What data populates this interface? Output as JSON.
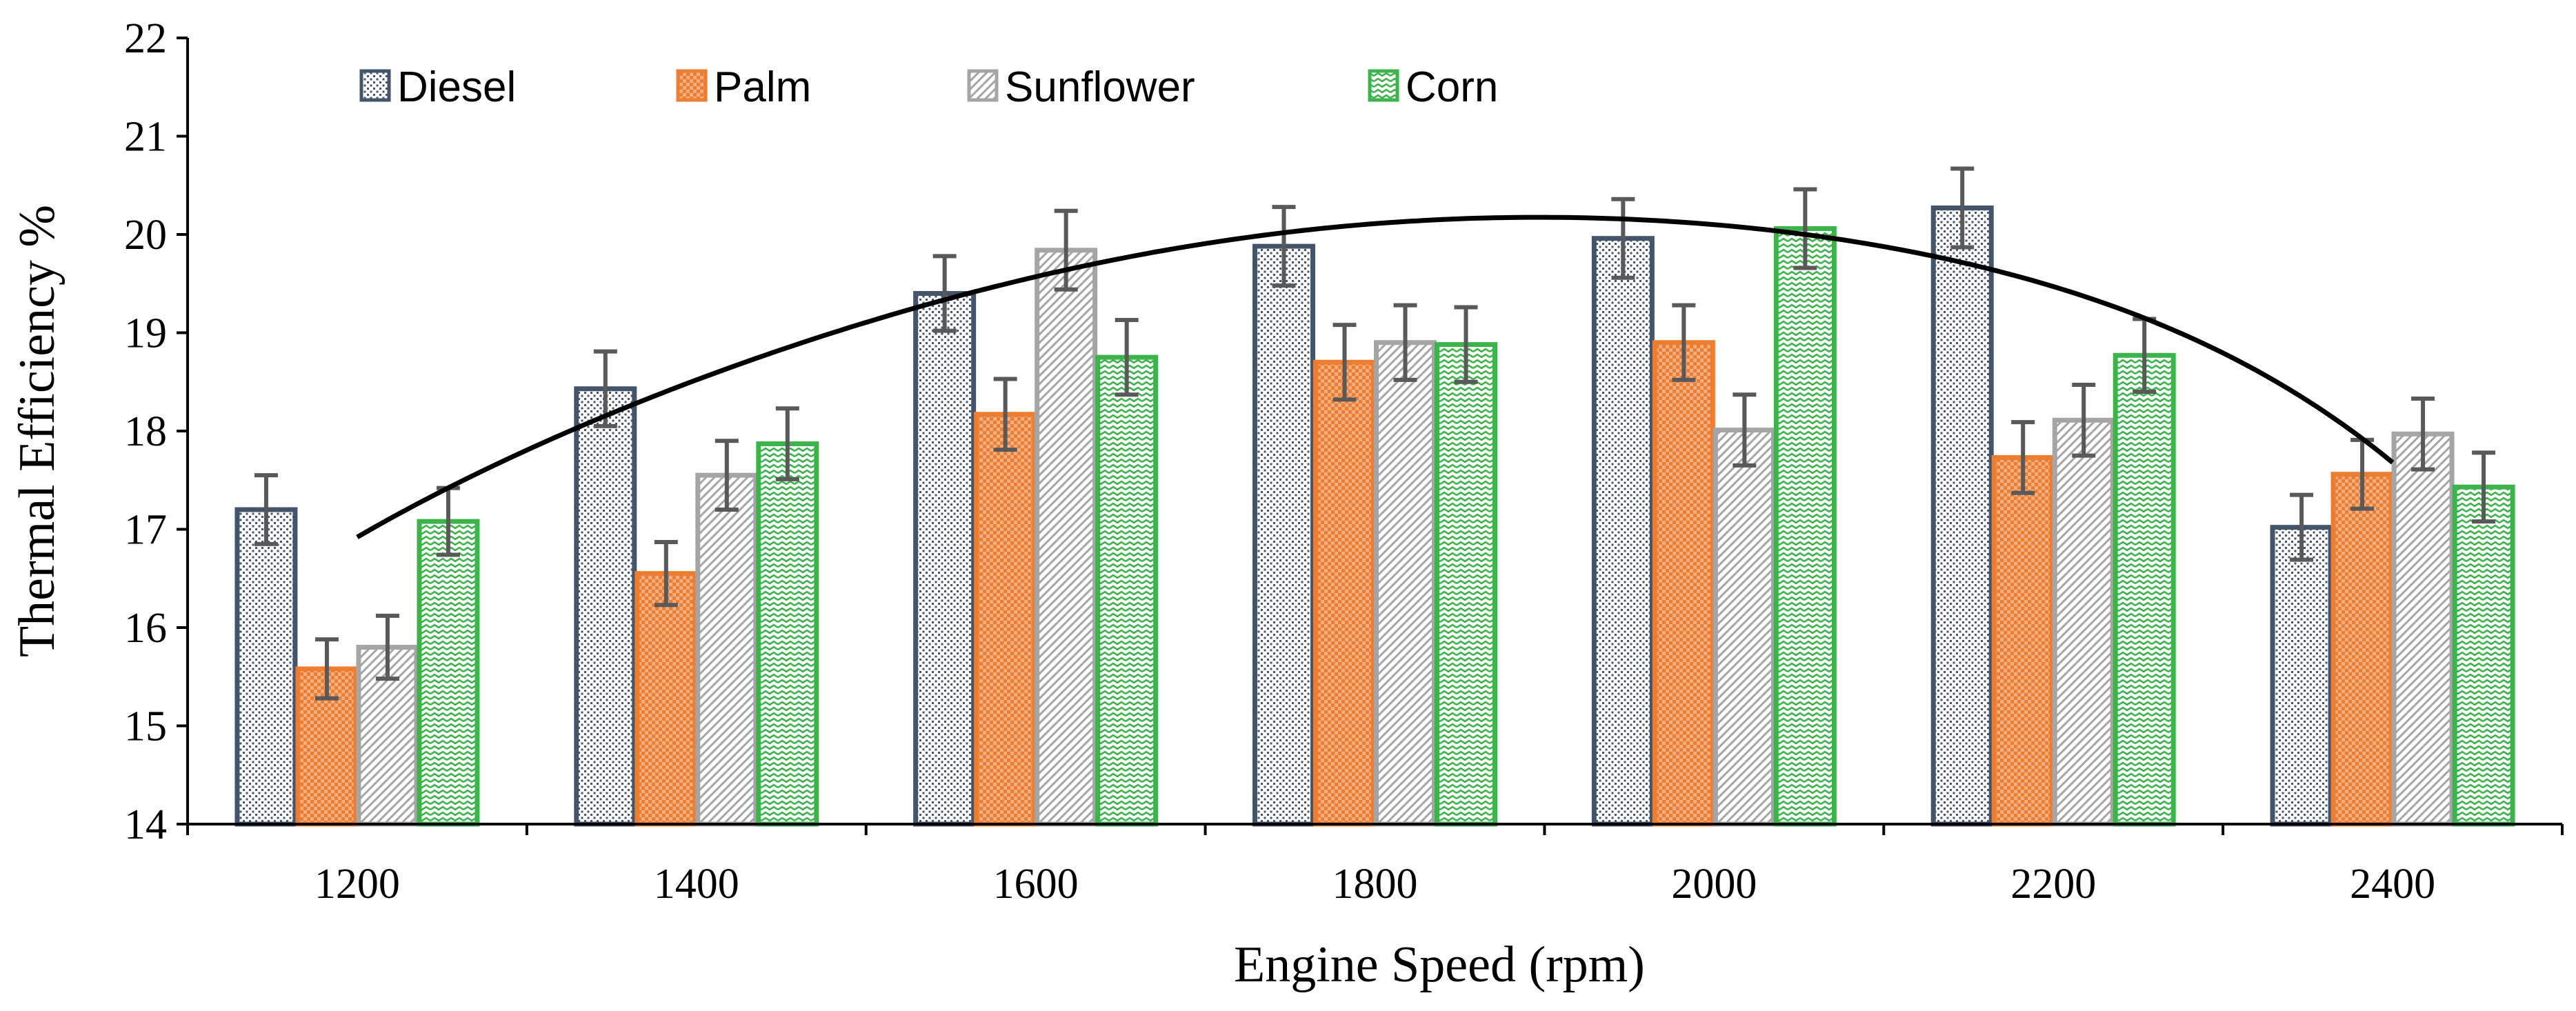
{
  "chart_data": {
    "type": "bar",
    "title": "",
    "xlabel": "Engine Speed (rpm)",
    "ylabel": "Thermal Efficiency %",
    "ylim": [
      14,
      22
    ],
    "yticks": [
      "14",
      "15",
      "16",
      "17",
      "18",
      "19",
      "20",
      "21",
      "22"
    ],
    "categories": [
      "1200",
      "1400",
      "1600",
      "1800",
      "2000",
      "2200",
      "2400"
    ],
    "legend_position": "top-left",
    "series": [
      {
        "name": "Diesel",
        "color": "#44546a",
        "pattern": "dots",
        "values": [
          17.2,
          18.43,
          19.4,
          19.88,
          19.96,
          20.27,
          17.02
        ],
        "errors": [
          0.35,
          0.38,
          0.38,
          0.4,
          0.4,
          0.4,
          0.33
        ]
      },
      {
        "name": "Palm",
        "color": "#ed7d31",
        "pattern": "check",
        "values": [
          15.58,
          16.55,
          18.17,
          18.7,
          18.9,
          17.73,
          17.56
        ],
        "errors": [
          0.3,
          0.32,
          0.36,
          0.38,
          0.38,
          0.36,
          0.35
        ]
      },
      {
        "name": "Sunflower",
        "color": "#a5a5a5",
        "pattern": "diagonal",
        "values": [
          15.8,
          17.55,
          19.84,
          18.9,
          18.01,
          18.11,
          17.97
        ],
        "errors": [
          0.32,
          0.35,
          0.4,
          0.38,
          0.36,
          0.36,
          0.36
        ]
      },
      {
        "name": "Corn",
        "color": "#3cb44b",
        "pattern": "wave",
        "values": [
          17.08,
          17.87,
          18.75,
          18.88,
          20.06,
          18.77,
          17.43
        ],
        "errors": [
          0.34,
          0.36,
          0.38,
          0.38,
          0.4,
          0.37,
          0.35
        ]
      }
    ],
    "trendline": {
      "type": "polynomial",
      "x": [
        1200,
        1400,
        1600,
        1800,
        2000,
        2200,
        2400
      ],
      "y": [
        16.92,
        18.52,
        19.57,
        20.11,
        20.1,
        19.47,
        17.68
      ]
    }
  }
}
